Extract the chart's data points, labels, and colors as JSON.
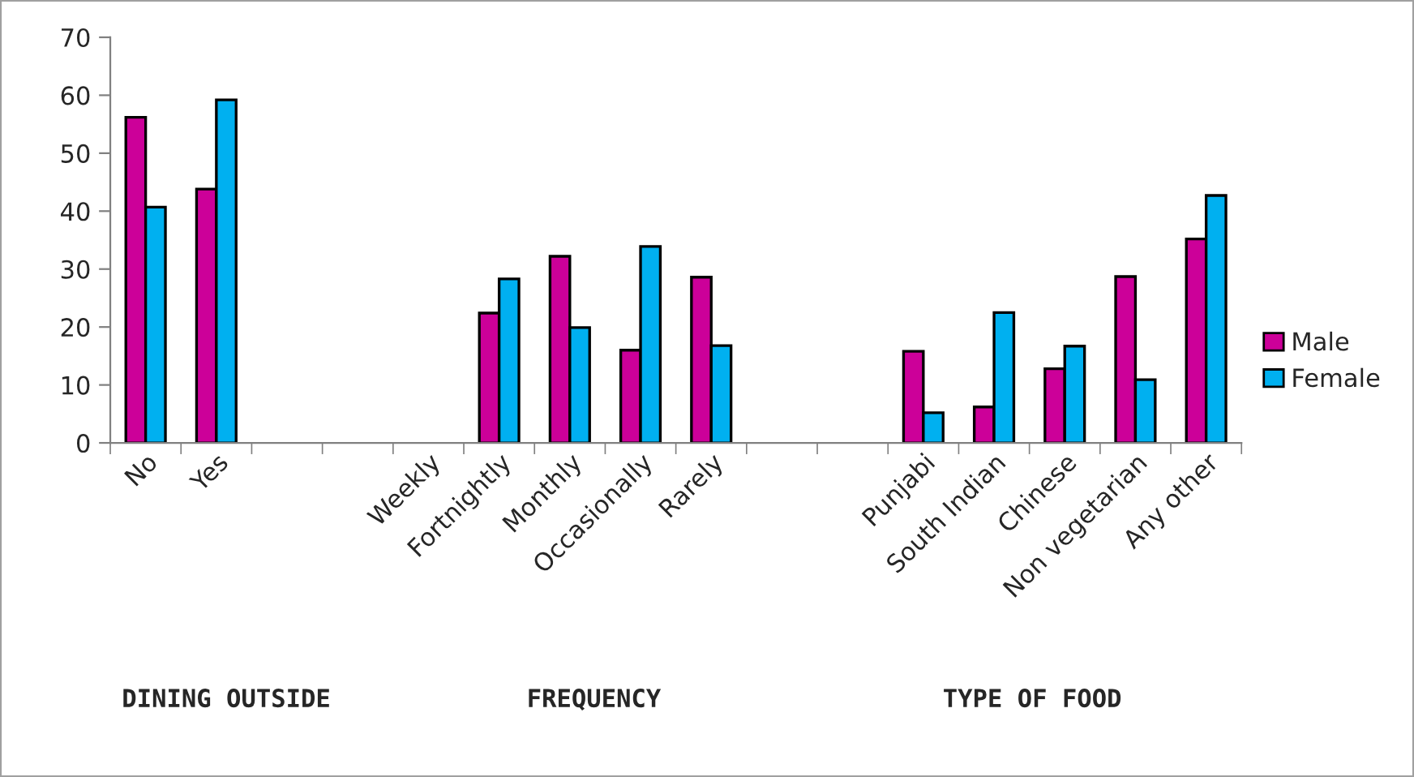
{
  "chart_data": {
    "type": "bar",
    "categories": [
      "No",
      "Yes",
      null,
      null,
      "Weekly",
      "Fortnightly",
      "Monthly",
      "Occasionally",
      "Rarely",
      null,
      null,
      "Punjabi",
      "South Indian",
      "Chinese",
      "Non vegetarian",
      "Any other"
    ],
    "series": [
      {
        "name": "Male",
        "color": "#cc0099",
        "values": [
          56.2,
          43.8,
          null,
          null,
          null,
          22.4,
          32.2,
          16,
          28.6,
          null,
          null,
          15.8,
          6.2,
          12.8,
          28.7,
          35.2
        ]
      },
      {
        "name": "Female",
        "color": "#00b0f0",
        "values": [
          40.7,
          59.2,
          null,
          null,
          null,
          28.3,
          19.9,
          33.9,
          16.8,
          null,
          null,
          5.2,
          22.5,
          16.7,
          10.9,
          42.7
        ]
      }
    ],
    "ylim": [
      0,
      70
    ],
    "yticks": [
      0,
      10,
      20,
      30,
      40,
      50,
      60,
      70
    ],
    "grid": false,
    "legend": "right",
    "annotations": [
      "DINING OUTSIDE",
      "FREQUENCY",
      "TYPE OF FOOD"
    ]
  }
}
